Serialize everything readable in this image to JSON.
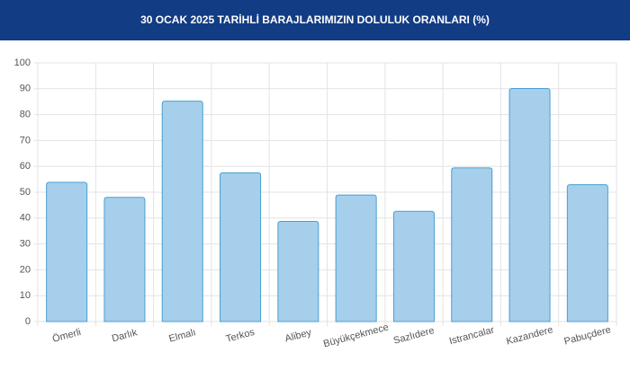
{
  "chart_data": {
    "type": "bar",
    "title": "30 OCAK 2025 TARİHLİ BARAJLARIMIZIN DOLULUK ORANLARI (%)",
    "categories": [
      "Ömerli",
      "Darlık",
      "Elmalı",
      "Terkos",
      "Alibey",
      "Büyükçekmece",
      "Sazlıdere",
      "Istrancalar",
      "Kazandere",
      "Pabuçdere"
    ],
    "values": [
      53.8,
      48,
      85.2,
      57.5,
      38.7,
      48.9,
      42.6,
      59.4,
      90.1,
      52.9
    ],
    "color": "#a6cfec",
    "ylim": [
      0,
      100
    ],
    "yticks": [
      0,
      10,
      20,
      30,
      40,
      50,
      60,
      70,
      80,
      90,
      100
    ],
    "grid": true
  }
}
